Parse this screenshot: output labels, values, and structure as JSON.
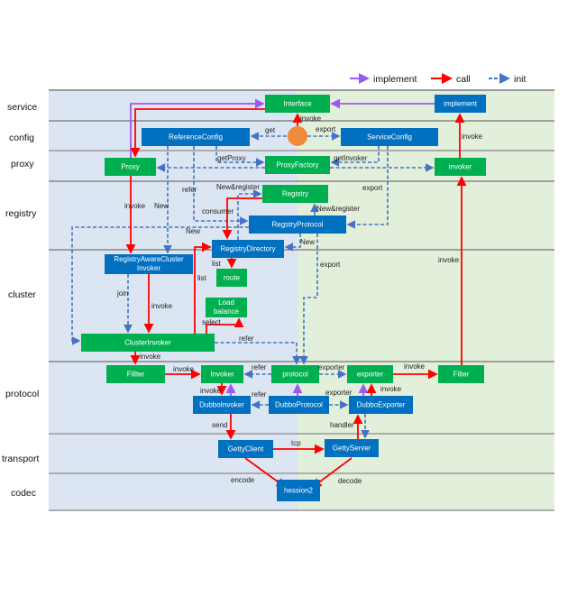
{
  "legend": [
    {
      "label": "implement",
      "style": "purple-solid"
    },
    {
      "label": "call",
      "style": "red-solid"
    },
    {
      "label": "init",
      "style": "blue-dashed"
    }
  ],
  "colors": {
    "implement": "#9b59f0",
    "call": "#ff0000",
    "init": "#4472c4",
    "green_box": "#00b050",
    "blue_box": "#0070c0",
    "consumer_bg": "#dce6f2",
    "provider_bg": "#e2efda",
    "circle": "#f08a3c"
  },
  "layers": [
    "service",
    "config",
    "proxy",
    "registry",
    "cluster",
    "protocol",
    "transport",
    "codec"
  ],
  "nodes": {
    "interface": "Interface",
    "implement": "implement",
    "reference_config": "ReferenceConfig",
    "service_config": "ServiceConfig",
    "proxy": "Proxy",
    "proxy_factory": "ProxyFactory",
    "invoker_top": "invoker",
    "registry": "Registry",
    "registry_protocol": "RegstryProtocol",
    "registry_directory": "RegistryDirectory",
    "rac_invoker_1": "RegistryAwareCluster",
    "rac_invoker_2": "Invoker",
    "route": "route",
    "load_balance_1": "Load",
    "load_balance_2": "balance",
    "cluster_invoker": "ClusterInvoker",
    "fillter": "Fillter",
    "invoker": "Invoker",
    "protocol": "protocol",
    "exporter": "exporter",
    "filter": "Filter",
    "dubbo_invoker": "DubboInvoker",
    "dubbo_protocol": "DubboProtocol",
    "dubbo_exporter": "DubboExporter",
    "getty_client": "GettyClient",
    "getty_server": "GettyServer",
    "hession2": "hession2"
  },
  "edge_labels": {
    "invoke_interface": "invoke",
    "get": "get",
    "export_sc": "export",
    "invoke_impl": "invoke",
    "get_proxy": "getProxy",
    "get_invoker": "getInvoker",
    "refer_rc": "refer",
    "invoke_proxy": "invoke",
    "new_rc": "New",
    "new_register_1": "New&register",
    "consumer": "consumer",
    "new_register_2": "New&register",
    "export_rp": "export",
    "new_cluster": "New",
    "new_dir": "New",
    "invoke_filter_up": "invoke",
    "export_protocol": "export",
    "list_route": "list",
    "list_dir": "list",
    "join": "join",
    "invoke_rac": "invoke",
    "select": "select",
    "refer_ci": "refer",
    "invoke_ci": "invoke",
    "invoke_fillter": "invoke",
    "refer_protocol": "refer",
    "exporter_protocol": "exporter",
    "invoke_exporter": "invoke",
    "invoke_dubbo": "invoke",
    "refer_dp": "refer",
    "exporter_dp": "exporter",
    "invoke_de": "invoke",
    "send": "send",
    "handler": "handler",
    "tcp": "tcp",
    "encode": "encode",
    "decode": "decode"
  }
}
